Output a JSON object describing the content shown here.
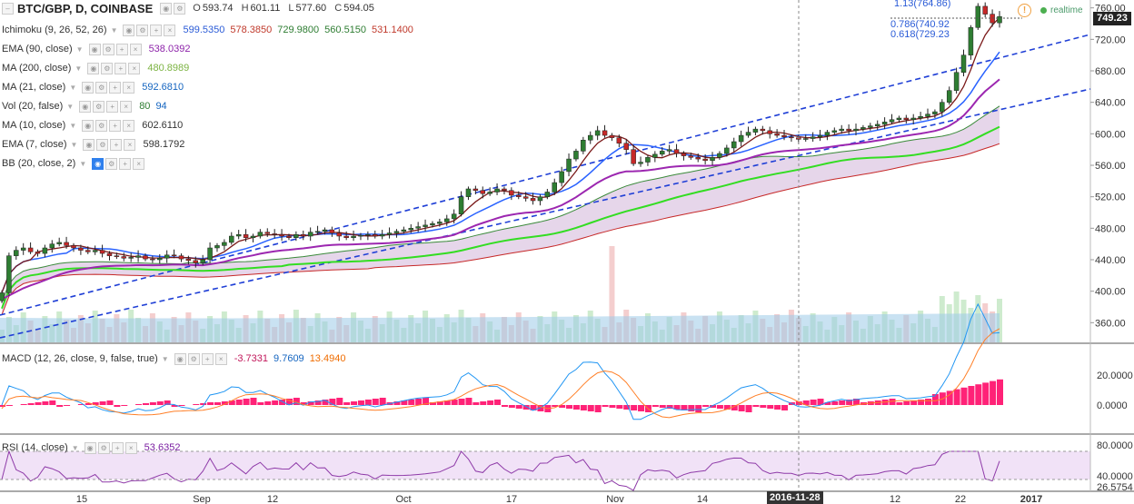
{
  "header": {
    "symbol": "BTC/GBP, D, COINBASE",
    "open_label": "O",
    "open": "593.74",
    "high_label": "H",
    "high": "601.11",
    "low_label": "L",
    "low": "577.60",
    "close_label": "C",
    "close": "594.05"
  },
  "realtime_label": "realtime",
  "warn_symbol": "!",
  "price_tag": "749.23",
  "date_tag": "2016-11-28",
  "fib": {
    "f113": "1.13(764.86)",
    "f786": "0.786(740.92",
    "f618": "0.618(729.23"
  },
  "indicators": [
    {
      "label": "Ichimoku (9, 26, 52, 26)",
      "values": [
        {
          "v": "599.5350",
          "c": "#2a5bd7"
        },
        {
          "v": "578.3850",
          "c": "#c0392b"
        },
        {
          "v": "729.9800",
          "c": "#2e7d32"
        },
        {
          "v": "560.5150",
          "c": "#2e7d32"
        },
        {
          "v": "531.1400",
          "c": "#c0392b"
        }
      ]
    },
    {
      "label": "EMA (90, close)",
      "values": [
        {
          "v": "538.0392",
          "c": "#8e24aa"
        }
      ]
    },
    {
      "label": "MA (200, close)",
      "values": [
        {
          "v": "480.8989",
          "c": "#7cb342"
        }
      ]
    },
    {
      "label": "MA (21, close)",
      "values": [
        {
          "v": "592.6810",
          "c": "#1565c0"
        }
      ]
    },
    {
      "label": "Vol (20, false)",
      "values": [
        {
          "v": "80",
          "c": "#2e7d32"
        },
        {
          "v": "94",
          "c": "#1565c0"
        }
      ]
    },
    {
      "label": "MA (10, close)",
      "values": [
        {
          "v": "602.6110",
          "c": "#333"
        }
      ]
    },
    {
      "label": "EMA (7, close)",
      "values": [
        {
          "v": "598.1792",
          "c": "#333"
        }
      ]
    },
    {
      "label": "BB (20, close, 2)",
      "values": []
    }
  ],
  "macd": {
    "label": "MACD (12, 26, close, 9, false, true)",
    "values": [
      {
        "v": "-3.7331",
        "c": "#c2185b"
      },
      {
        "v": "9.7609",
        "c": "#1565c0"
      },
      {
        "v": "13.4940",
        "c": "#ef6c00"
      }
    ]
  },
  "rsi": {
    "label": "RSI (14, close)",
    "values": [
      {
        "v": "53.6352",
        "c": "#7b1fa2"
      }
    ]
  },
  "colors": {
    "up": "#2e7d32",
    "down": "#c62828",
    "channel": "#1f3fd6",
    "ema90": "#9c27b0",
    "ma200": "#33dd22",
    "ma21": "#2962ff",
    "ma10": "#111111",
    "ema7": "#7b1a1a",
    "cloud": "#c8a4d0",
    "macd": "#2196f3",
    "signal": "#ff7f27",
    "hist": "#ff2277",
    "rsi": "#8e3aa8"
  },
  "chart_data": {
    "type": "candlestick",
    "price_axis": {
      "ticks": [
        360,
        400,
        440,
        480,
        520,
        560,
        600,
        640,
        680,
        720,
        760
      ],
      "range": [
        335,
        770
      ]
    },
    "time_axis": [
      "15",
      "Sep",
      "12",
      "Oct",
      "17",
      "Nov",
      "14",
      "2016-11-28",
      "12",
      "22",
      "2017"
    ],
    "macd_axis": {
      "ticks": [
        "0.0000",
        "20.0000"
      ]
    },
    "rsi_axis": {
      "ticks": [
        "40.0000",
        "80.0000"
      ]
    },
    "rsi_overlay_label": "26.5754",
    "last_close": 749.23,
    "candles_approx": {
      "closes": [
        398,
        445,
        452,
        455,
        450,
        448,
        455,
        460,
        462,
        458,
        455,
        452,
        450,
        452,
        448,
        445,
        444,
        442,
        443,
        445,
        441,
        440,
        442,
        446,
        445,
        441,
        439,
        436,
        440,
        455,
        458,
        462,
        470,
        472,
        468,
        470,
        475,
        473,
        472,
        470,
        468,
        472,
        470,
        475,
        476,
        478,
        474,
        470,
        468,
        470,
        471,
        472,
        470,
        472,
        474,
        476,
        478,
        480,
        482,
        484,
        486,
        488,
        492,
        498,
        520,
        530,
        528,
        524,
        526,
        530,
        528,
        522,
        520,
        518,
        515,
        520,
        526,
        538,
        552,
        568,
        578,
        592,
        598,
        604,
        598,
        595,
        588,
        580,
        562,
        564,
        570,
        574,
        578,
        580,
        575,
        572,
        570,
        568,
        566,
        570,
        575,
        582,
        590,
        598,
        602,
        606,
        604,
        600,
        598,
        596,
        595,
        593,
        594,
        596,
        598,
        602,
        604,
        606,
        604,
        606,
        608,
        610,
        612,
        615,
        618,
        620,
        618,
        620,
        622,
        625,
        628,
        640,
        655,
        678,
        700,
        735,
        762,
        752,
        741,
        749
      ],
      "note": "approximate daily closes read from the chart"
    }
  }
}
